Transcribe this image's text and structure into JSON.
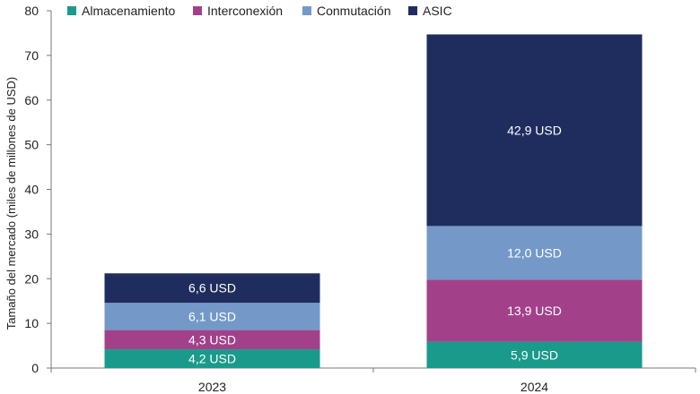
{
  "chart_data": {
    "type": "bar",
    "stacked": true,
    "title": "",
    "xlabel": "",
    "ylabel": "Tamaño del mercado (miles de millones de USD)",
    "ylim": [
      0,
      80
    ],
    "yticks": [
      0,
      10,
      20,
      30,
      40,
      50,
      60,
      70,
      80
    ],
    "grid": false,
    "legend_position": "top-left",
    "categories": [
      "2023",
      "2024"
    ],
    "series": [
      {
        "name": "Almacenamiento",
        "color": "#1a9a8a",
        "values": [
          4.2,
          5.9
        ],
        "labels": [
          "4,2 USD",
          "5,9 USD"
        ]
      },
      {
        "name": "Interconexión",
        "color": "#a2418a",
        "values": [
          4.3,
          13.9
        ],
        "labels": [
          "4,3 USD",
          "13,9 USD"
        ]
      },
      {
        "name": "Conmutación",
        "color": "#7499c8",
        "values": [
          6.1,
          12.0
        ],
        "labels": [
          "6,1 USD",
          "12,0 USD"
        ]
      },
      {
        "name": "ASIC",
        "color": "#1f2d5e",
        "values": [
          6.6,
          42.9
        ],
        "labels": [
          "6,6 USD",
          "42,9 USD"
        ]
      }
    ]
  }
}
